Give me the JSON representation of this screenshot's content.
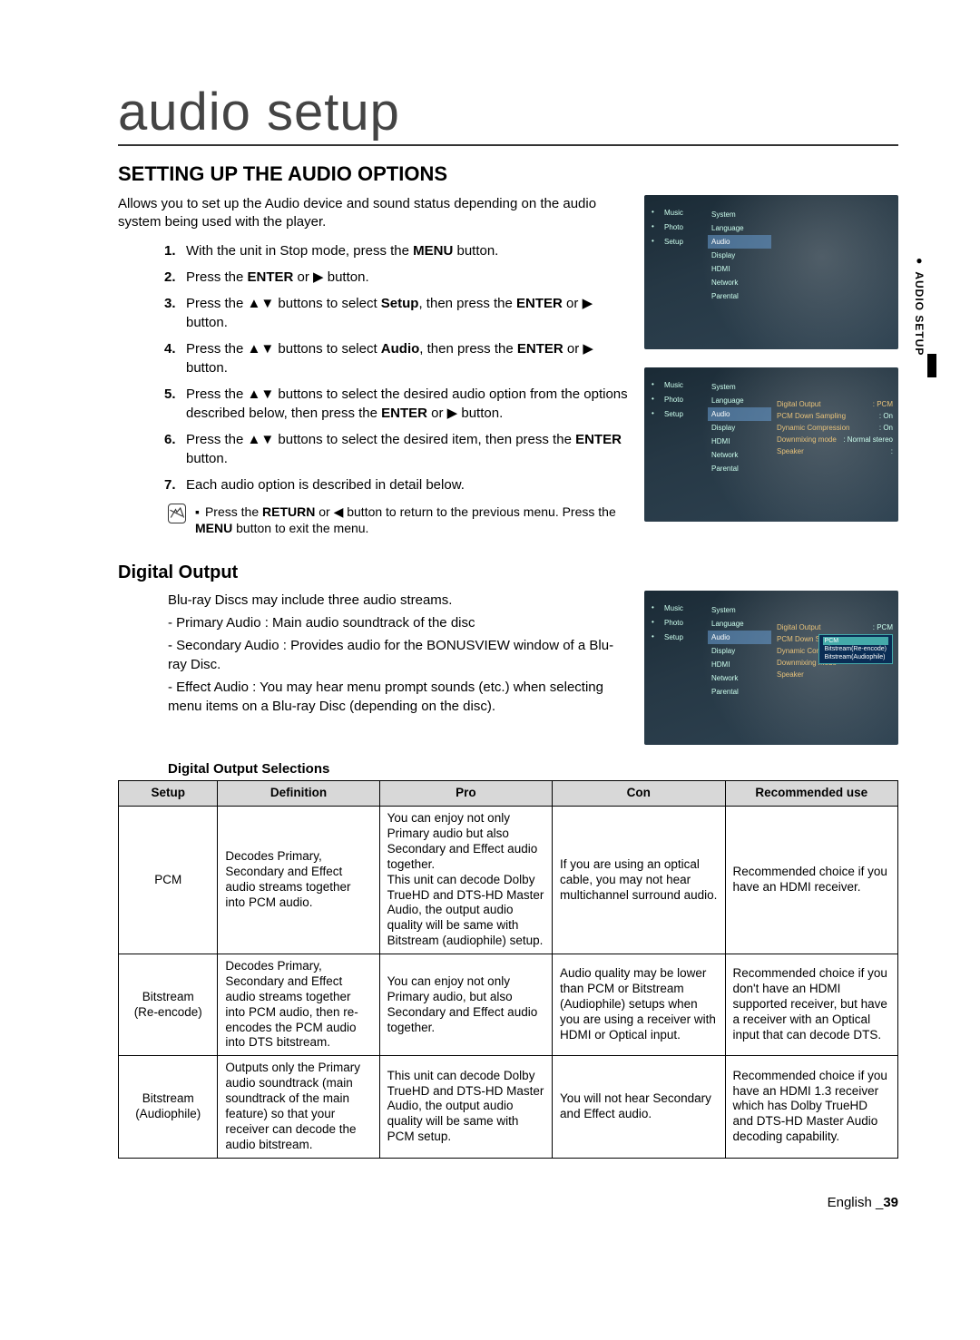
{
  "page_title": "audio setup",
  "section_heading": "SETTING UP THE AUDIO OPTIONS",
  "intro": "Allows you to set up the Audio device and sound status depending on the audio system being used with the player.",
  "steps": [
    {
      "num": "1.",
      "html": "With the unit in Stop mode, press the <b>MENU</b> button."
    },
    {
      "num": "2.",
      "html": "Press the <b>ENTER</b> or ▶ button."
    },
    {
      "num": "3.",
      "html": "Press the ▲▼ buttons to select <b>Setup</b>, then press the <b>ENTER</b> or ▶ button."
    },
    {
      "num": "4.",
      "html": "Press the ▲▼ buttons to select <b>Audio</b>, then press the <b>ENTER</b> or ▶ button."
    },
    {
      "num": "5.",
      "html": "Press the ▲▼ buttons to select the desired audio option from the options described below, then press the <b>ENTER</b> or ▶ button."
    },
    {
      "num": "6.",
      "html": "Press the ▲▼ buttons to select the desired item, then press the <b>ENTER</b> button."
    },
    {
      "num": "7.",
      "html": "Each audio option is described in detail below."
    }
  ],
  "note_html": "Press the <b>RETURN</b> or ◀ button to return to the previous menu. Press the <b>MENU</b> button to exit the menu.",
  "sub_heading": "Digital Output",
  "digital_output_text": {
    "p1": "Blu-ray Discs may include three audio streams.",
    "p2": "- Primary Audio : Main audio soundtrack of the disc",
    "p3": "- Secondary Audio : Provides audio for the BONUSVIEW window of a Blu-ray Disc.",
    "p4": "- Effect Audio : You may hear menu prompt sounds (etc.) when selecting menu items on a Blu-ray Disc (depending on the disc)."
  },
  "table_title": "Digital Output Selections",
  "table": {
    "headers": [
      "Setup",
      "Definition",
      "Pro",
      "Con",
      "Recommended use"
    ],
    "rows": [
      {
        "setup": "PCM",
        "def": "Decodes Primary, Secondary and Effect audio streams together into PCM audio.",
        "pro": "You can enjoy not only Primary audio but also Secondary and Effect audio together.\nThis unit can decode Dolby TrueHD and DTS-HD Master Audio, the output audio quality will be same with Bitstream (audiophile) setup.",
        "con": "If you are using an optical cable, you may not hear multichannel surround audio.",
        "rec": "Recommended choice if you have an HDMI receiver."
      },
      {
        "setup": "Bitstream\n(Re-encode)",
        "def": "Decodes Primary, Secondary and Effect audio streams together into PCM audio, then re-encodes the PCM audio into DTS bitstream.",
        "pro": "You can enjoy not only Primary audio, but also Secondary and Effect audio together.",
        "con": "Audio quality may be lower than PCM or Bitstream (Audiophile) setups when you are using a receiver with HDMI or Optical input.",
        "rec": "Recommended choice if you don't have an HDMI supported receiver, but have a receiver with an Optical input that can decode DTS."
      },
      {
        "setup": "Bitstream\n(Audiophile)",
        "def": "Outputs only the Primary audio soundtrack (main soundtrack of the main feature) so that your receiver can decode the audio bitstream.",
        "pro": "This unit can decode Dolby TrueHD and DTS-HD Master Audio, the output audio quality will be same with PCM setup.",
        "con": "You will not hear Secondary and Effect audio.",
        "rec": "Recommended choice if you have an HDMI 1.3 receiver which has Dolby TrueHD and DTS-HD Master Audio decoding capability."
      }
    ]
  },
  "shot_left": [
    {
      "label": "Music"
    },
    {
      "label": "Photo"
    },
    {
      "label": "Setup",
      "icons": true
    }
  ],
  "shot_mid": [
    "System",
    "Language",
    "Audio",
    "Display",
    "HDMI",
    "Network",
    "Parental"
  ],
  "shot_mid_active_index": 2,
  "shot2_right": [
    {
      "k": "Digital Output",
      "v": "PCM"
    },
    {
      "k": "PCM Down Sampling",
      "v": "On"
    },
    {
      "k": "Dynamic Compression",
      "v": "On"
    },
    {
      "k": "Downmixing mode",
      "v": "Normal stereo"
    },
    {
      "k": "Speaker",
      "v": ""
    }
  ],
  "shot3_right": [
    {
      "k": "Digital Output",
      "v": "PCM"
    },
    {
      "k": "PCM Down Sampling",
      "v": ""
    },
    {
      "k": "Dynamic Compression",
      "v": ""
    },
    {
      "k": "Downmixing mode",
      "v": ""
    },
    {
      "k": "Speaker",
      "v": ""
    }
  ],
  "shot3_popup": [
    "PCM",
    "Bitstream(Re-encode)",
    "Bitstream(Audiophile)"
  ],
  "side_tab": "AUDIO SETUP",
  "footer_lang": "English",
  "footer_page": "39"
}
